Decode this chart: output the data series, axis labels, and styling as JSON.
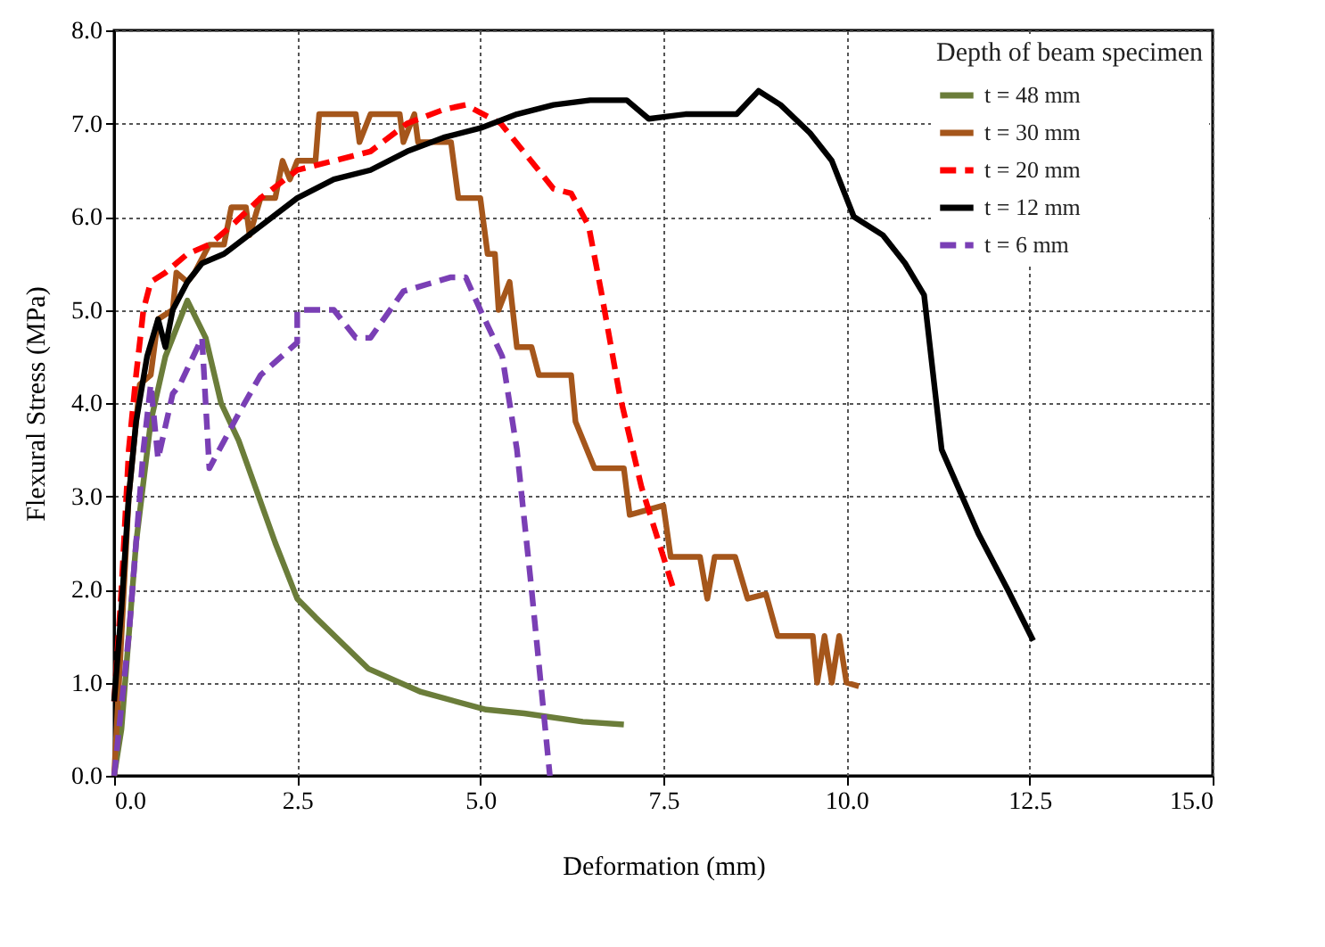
{
  "chart_data": {
    "type": "line",
    "xlabel": "Deformation (mm)",
    "ylabel": "Flexural Stress (MPa)",
    "legend_title": "Depth of beam specimen",
    "legend": "top right",
    "grid": true,
    "xlim": [
      0,
      15
    ],
    "xticks": [
      {
        "value": 0,
        "label": "0.0"
      },
      2.5,
      {
        "value": 5,
        "label": "5.0"
      },
      7.5,
      {
        "value": 10,
        "label": "10.0"
      },
      12.5,
      {
        "value": 15,
        "label": "15.0"
      }
    ],
    "ylim": [
      0,
      8
    ],
    "yticks": [
      {
        "value": 0,
        "label": "0.0"
      },
      {
        "value": 1,
        "label": "1.0"
      },
      {
        "value": 2,
        "label": "2.0"
      },
      {
        "value": 3,
        "label": "3.0"
      },
      {
        "value": 4,
        "label": "4.0"
      },
      {
        "value": 5,
        "label": "5.0"
      },
      {
        "value": 6,
        "label": "6.0"
      },
      {
        "value": 7,
        "label": "7.0"
      },
      {
        "value": 8,
        "label": "8.0"
      }
    ],
    "series": [
      {
        "name": "t = 48 mm",
        "color": "#6b7d3a",
        "line_style": "solid",
        "x": [
          0,
          0.1,
          0.3,
          0.5,
          0.7,
          1.0,
          1.25,
          1.46,
          1.7,
          2.2,
          2.5,
          2.75,
          3.47,
          4.19,
          5.08,
          5.6,
          6.4,
          6.96
        ],
        "values": [
          0,
          0.5,
          2.5,
          3.8,
          4.5,
          5.1,
          4.7,
          4.0,
          3.6,
          2.5,
          1.9,
          1.7,
          1.15,
          0.9,
          0.71,
          0.67,
          0.58,
          0.55
        ]
      },
      {
        "name": "t = 30 mm",
        "color": "#a5561b",
        "line_style": "solid",
        "x": [
          0,
          0.1,
          0.2,
          0.3,
          0.35,
          0.5,
          0.6,
          0.8,
          0.85,
          1.0,
          1.1,
          1.3,
          1.5,
          1.6,
          1.8,
          1.85,
          2.0,
          2.2,
          2.3,
          2.4,
          2.5,
          2.75,
          2.8,
          3.3,
          3.35,
          3.5,
          3.9,
          3.95,
          4.1,
          4.15,
          4.6,
          4.7,
          5.0,
          5.1,
          5.2,
          5.25,
          5.4,
          5.5,
          5.7,
          5.8,
          6.24,
          6.3,
          6.56,
          6.96,
          7.04,
          7.5,
          7.6,
          8.0,
          8.1,
          8.2,
          8.48,
          8.65,
          8.9,
          9.06,
          9.54,
          9.6,
          9.7,
          9.8,
          9.9,
          10.0,
          10.17
        ],
        "values": [
          0,
          1.5,
          3.0,
          3.8,
          4.2,
          4.3,
          4.9,
          5.0,
          5.4,
          5.3,
          5.4,
          5.7,
          5.7,
          6.1,
          6.1,
          5.8,
          6.2,
          6.2,
          6.6,
          6.4,
          6.6,
          6.6,
          7.1,
          7.1,
          6.8,
          7.1,
          7.1,
          6.8,
          7.1,
          6.8,
          6.8,
          6.2,
          6.2,
          5.6,
          5.6,
          5.0,
          5.3,
          4.6,
          4.6,
          4.3,
          4.3,
          3.8,
          3.3,
          3.3,
          2.8,
          2.9,
          2.35,
          2.35,
          1.9,
          2.35,
          2.35,
          1.9,
          1.95,
          1.5,
          1.5,
          1.0,
          1.5,
          1.0,
          1.5,
          1.0,
          0.96
        ]
      },
      {
        "name": "t = 20 mm",
        "color": "#ff0000",
        "line_style": "dashed",
        "x": [
          0,
          0.1,
          0.2,
          0.3,
          0.4,
          0.5,
          0.7,
          1.0,
          1.3,
          1.6,
          2.0,
          2.5,
          3.0,
          3.5,
          4.0,
          4.5,
          4.8,
          5.28,
          6.0,
          6.24,
          6.48,
          6.65,
          6.9,
          7.2,
          7.64
        ],
        "values": [
          0.8,
          2.0,
          3.5,
          4.3,
          5.0,
          5.3,
          5.4,
          5.6,
          5.7,
          5.9,
          6.2,
          6.5,
          6.6,
          6.7,
          7.0,
          7.15,
          7.2,
          7.0,
          6.3,
          6.25,
          5.9,
          5.2,
          4.1,
          3.1,
          2.0
        ]
      },
      {
        "name": "t = 12 mm",
        "color": "#000000",
        "line_style": "solid",
        "x": [
          0,
          0.1,
          0.2,
          0.3,
          0.45,
          0.6,
          0.7,
          0.8,
          1.0,
          1.2,
          1.5,
          2.0,
          2.5,
          3.0,
          3.5,
          4.0,
          4.5,
          5.0,
          5.5,
          6.0,
          6.5,
          7.0,
          7.3,
          7.8,
          8.5,
          8.8,
          9.1,
          9.5,
          9.8,
          10.1,
          10.5,
          10.8,
          11.06,
          11.3,
          11.8,
          12.2,
          12.55
        ],
        "values": [
          0.8,
          1.8,
          3.0,
          3.8,
          4.5,
          4.9,
          4.6,
          5.0,
          5.3,
          5.5,
          5.6,
          5.9,
          6.2,
          6.4,
          6.5,
          6.7,
          6.85,
          6.95,
          7.1,
          7.2,
          7.25,
          7.25,
          7.05,
          7.1,
          7.1,
          7.35,
          7.2,
          6.9,
          6.6,
          6.0,
          5.8,
          5.5,
          5.16,
          3.5,
          2.6,
          2.0,
          1.45
        ]
      },
      {
        "name": "t = 6 mm",
        "color": "#7a3fb5",
        "line_style": "dashed",
        "x": [
          0,
          0.2,
          0.4,
          0.5,
          0.6,
          0.8,
          0.9,
          1.2,
          1.3,
          1.71,
          2.0,
          2.5,
          2.5,
          3.0,
          3.3,
          3.5,
          3.95,
          4.6,
          4.8,
          5.0,
          5.3,
          5.5,
          5.7,
          5.85,
          5.95
        ],
        "values": [
          0,
          1.5,
          3.5,
          4.2,
          3.4,
          4.1,
          4.2,
          4.7,
          3.3,
          3.9,
          4.3,
          4.65,
          5.0,
          5.0,
          4.7,
          4.7,
          5.2,
          5.35,
          5.35,
          5.0,
          4.5,
          3.5,
          2.0,
          0.8,
          0
        ]
      }
    ]
  }
}
